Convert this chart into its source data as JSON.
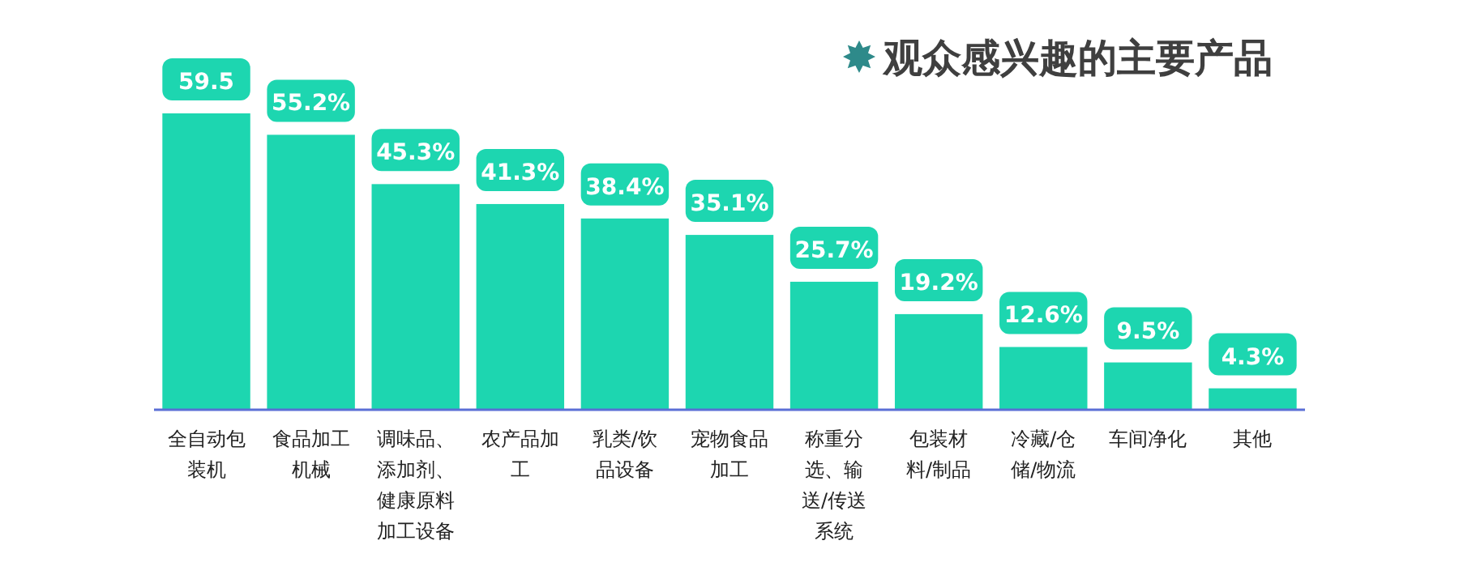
{
  "chart_data": {
    "type": "bar",
    "title": "观众感兴趣的主要产品",
    "categories": [
      "全自动包装机",
      "食品加工机械",
      "调味品、添加剂、健康原料加工设备",
      "农产品加工",
      "乳类/饮品设备",
      "宠物食品加工",
      "称重分选、输送/传送系统",
      "包装材料/制品",
      "冷藏/仓储/物流",
      "车间净化",
      "其他"
    ],
    "values": [
      59.5,
      55.2,
      45.3,
      41.3,
      38.4,
      35.1,
      25.7,
      19.2,
      12.6,
      9.5,
      4.3
    ],
    "value_labels": [
      "59.5",
      "55.2%",
      "45.3%",
      "41.3%",
      "38.4%",
      "35.1%",
      "25.7%",
      "19.2%",
      "12.6%",
      "9.5%",
      "4.3%"
    ],
    "color": "#1dd6b0"
  }
}
